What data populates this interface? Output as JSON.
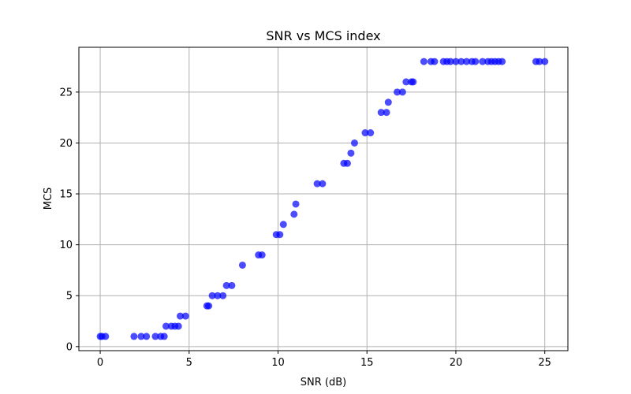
{
  "chart_data": {
    "type": "scatter",
    "title": "SNR vs MCS index",
    "xlabel": "SNR (dB)",
    "ylabel": "MCS",
    "xlim": [
      -1.2,
      26.3
    ],
    "ylim": [
      -0.4,
      29.4
    ],
    "xticks": [
      0,
      5,
      10,
      15,
      20,
      25
    ],
    "yticks": [
      0,
      5,
      10,
      15,
      20,
      25
    ],
    "grid": true,
    "marker_color": "#0000ff",
    "marker_alpha": 0.7,
    "points": [
      [
        0.0,
        1
      ],
      [
        0.1,
        1
      ],
      [
        0.3,
        1
      ],
      [
        1.9,
        1
      ],
      [
        2.3,
        1
      ],
      [
        2.6,
        1
      ],
      [
        3.1,
        1
      ],
      [
        3.4,
        1
      ],
      [
        3.6,
        1
      ],
      [
        3.7,
        2
      ],
      [
        4.0,
        2
      ],
      [
        4.2,
        2
      ],
      [
        4.4,
        2
      ],
      [
        4.5,
        3
      ],
      [
        4.8,
        3
      ],
      [
        6.0,
        4
      ],
      [
        6.1,
        4
      ],
      [
        6.3,
        5
      ],
      [
        6.6,
        5
      ],
      [
        6.9,
        5
      ],
      [
        7.1,
        6
      ],
      [
        7.4,
        6
      ],
      [
        8.0,
        8
      ],
      [
        8.9,
        9
      ],
      [
        9.1,
        9
      ],
      [
        9.9,
        11
      ],
      [
        10.1,
        11
      ],
      [
        10.3,
        12
      ],
      [
        10.9,
        13
      ],
      [
        11.0,
        14
      ],
      [
        12.2,
        16
      ],
      [
        12.5,
        16
      ],
      [
        13.7,
        18
      ],
      [
        13.9,
        18
      ],
      [
        14.1,
        19
      ],
      [
        14.3,
        20
      ],
      [
        14.9,
        21
      ],
      [
        15.2,
        21
      ],
      [
        15.8,
        23
      ],
      [
        16.1,
        23
      ],
      [
        16.2,
        24
      ],
      [
        16.7,
        25
      ],
      [
        17.0,
        25
      ],
      [
        17.2,
        26
      ],
      [
        17.5,
        26
      ],
      [
        17.6,
        26
      ],
      [
        18.2,
        28
      ],
      [
        18.6,
        28
      ],
      [
        18.8,
        28
      ],
      [
        19.3,
        28
      ],
      [
        19.5,
        28
      ],
      [
        19.7,
        28
      ],
      [
        20.0,
        28
      ],
      [
        20.3,
        28
      ],
      [
        20.6,
        28
      ],
      [
        20.9,
        28
      ],
      [
        21.1,
        28
      ],
      [
        21.5,
        28
      ],
      [
        21.8,
        28
      ],
      [
        22.0,
        28
      ],
      [
        22.2,
        28
      ],
      [
        22.4,
        28
      ],
      [
        22.6,
        28
      ],
      [
        24.5,
        28
      ],
      [
        24.7,
        28
      ],
      [
        25.0,
        28
      ]
    ]
  }
}
